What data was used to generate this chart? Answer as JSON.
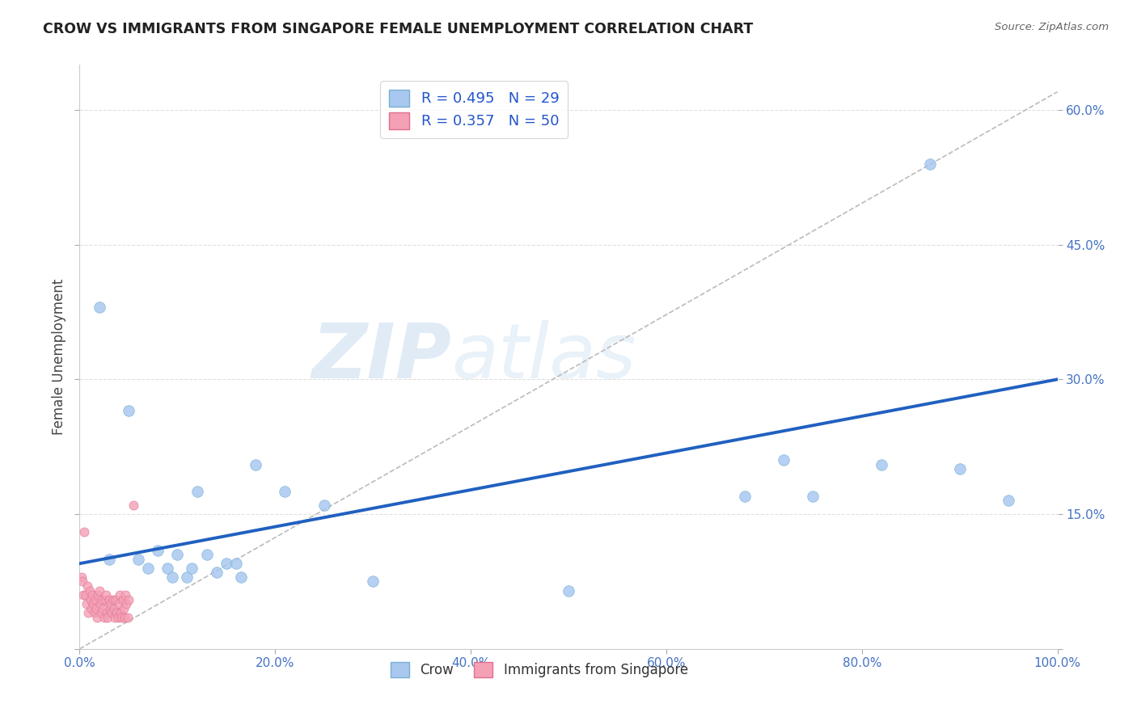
{
  "title": "CROW VS IMMIGRANTS FROM SINGAPORE FEMALE UNEMPLOYMENT CORRELATION CHART",
  "source": "Source: ZipAtlas.com",
  "tick_color": "#4472C4",
  "ylabel": "Female Unemployment",
  "background_color": "#ffffff",
  "watermark_text": "ZIPatlas",
  "crow_color": "#A8C8F0",
  "crow_edge_color": "#7AAFD4",
  "sing_color": "#F4A0B5",
  "sing_edge_color": "#E07090",
  "crow_R": 0.495,
  "crow_N": 29,
  "sing_R": 0.357,
  "sing_N": 50,
  "crow_trendline_color": "#2060C0",
  "sing_trendline_color": "#C0C0C0",
  "grid_color": "#DDDDDD",
  "crow_scatter_x": [
    0.02,
    0.03,
    0.05,
    0.06,
    0.07,
    0.08,
    0.09,
    0.095,
    0.1,
    0.11,
    0.115,
    0.12,
    0.13,
    0.14,
    0.15,
    0.16,
    0.165,
    0.18,
    0.21,
    0.25,
    0.3,
    0.5,
    0.68,
    0.72,
    0.75,
    0.82,
    0.87,
    0.9,
    0.95
  ],
  "crow_scatter_y": [
    0.38,
    0.1,
    0.265,
    0.1,
    0.09,
    0.11,
    0.09,
    0.08,
    0.105,
    0.08,
    0.09,
    0.175,
    0.105,
    0.085,
    0.095,
    0.095,
    0.08,
    0.205,
    0.175,
    0.16,
    0.075,
    0.065,
    0.17,
    0.21,
    0.17,
    0.205,
    0.54,
    0.2,
    0.165
  ],
  "sing_scatter_x": [
    0.002,
    0.003,
    0.004,
    0.005,
    0.006,
    0.007,
    0.008,
    0.009,
    0.01,
    0.011,
    0.012,
    0.013,
    0.014,
    0.015,
    0.016,
    0.017,
    0.018,
    0.019,
    0.02,
    0.021,
    0.022,
    0.023,
    0.024,
    0.025,
    0.026,
    0.027,
    0.028,
    0.029,
    0.03,
    0.031,
    0.032,
    0.033,
    0.034,
    0.035,
    0.036,
    0.037,
    0.038,
    0.039,
    0.04,
    0.041,
    0.042,
    0.043,
    0.044,
    0.045,
    0.046,
    0.047,
    0.048,
    0.049,
    0.05,
    0.055
  ],
  "sing_scatter_y": [
    0.08,
    0.075,
    0.06,
    0.13,
    0.06,
    0.05,
    0.07,
    0.04,
    0.065,
    0.055,
    0.045,
    0.06,
    0.05,
    0.04,
    0.055,
    0.045,
    0.035,
    0.06,
    0.065,
    0.05,
    0.04,
    0.055,
    0.045,
    0.035,
    0.055,
    0.06,
    0.04,
    0.035,
    0.055,
    0.045,
    0.05,
    0.04,
    0.055,
    0.045,
    0.035,
    0.055,
    0.04,
    0.035,
    0.05,
    0.06,
    0.04,
    0.035,
    0.055,
    0.045,
    0.035,
    0.06,
    0.05,
    0.035,
    0.055,
    0.16
  ],
  "xlim": [
    0.0,
    1.0
  ],
  "ylim": [
    0.0,
    0.65
  ],
  "xticks": [
    0.0,
    0.2,
    0.4,
    0.6,
    0.8,
    1.0
  ],
  "xtick_labels": [
    "0.0%",
    "20.0%",
    "40.0%",
    "60.0%",
    "80.0%",
    "100.0%"
  ],
  "yticks": [
    0.0,
    0.15,
    0.3,
    0.45,
    0.6
  ],
  "ytick_labels": [
    "",
    "15.0%",
    "30.0%",
    "45.0%",
    "60.0%"
  ],
  "legend_entries": [
    "Crow",
    "Immigrants from Singapore"
  ],
  "marker_size": 80,
  "crow_trendline_x": [
    0.0,
    1.0
  ],
  "crow_trendline_y": [
    0.095,
    0.3
  ],
  "sing_trendline_x": [
    0.0,
    1.0
  ],
  "sing_trendline_y": [
    0.0,
    0.62
  ]
}
